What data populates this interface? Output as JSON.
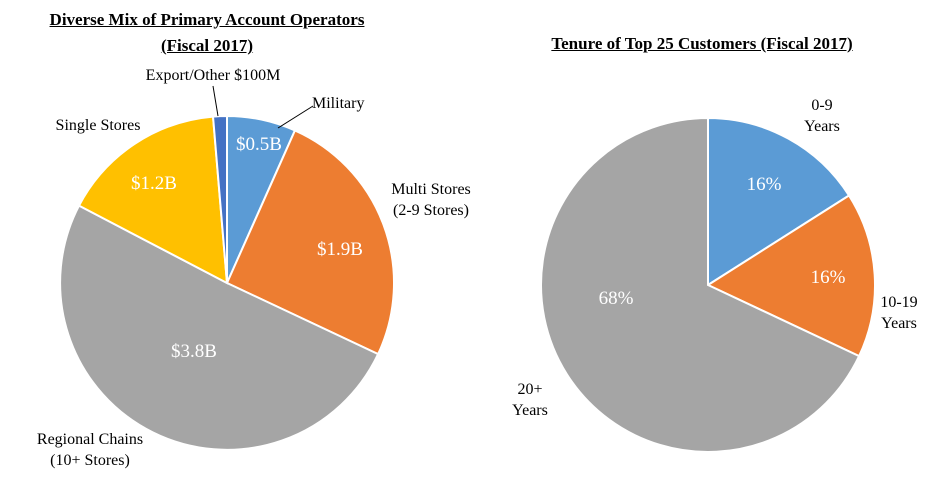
{
  "chart_data": [
    {
      "type": "pie",
      "title_line1": "Diverse Mix  of Primary  Account Operators",
      "title_line2": "(Fiscal 2017)",
      "slices": [
        {
          "label": "Military",
          "value": 0.5,
          "display": "$0.5B",
          "color": "#5b9bd5"
        },
        {
          "label_lines": [
            "Multi Stores",
            "(2-9 Stores)"
          ],
          "value": 1.9,
          "display": "$1.9B",
          "color": "#ed7d31"
        },
        {
          "label_lines": [
            "Regional Chains",
            "(10+ Stores)"
          ],
          "value": 3.8,
          "display": "$3.8B",
          "color": "#a5a5a5"
        },
        {
          "label": "Single  Stores",
          "value": 1.2,
          "display": "$1.2B",
          "color": "#ffc000"
        },
        {
          "label": "Export/Other $100M",
          "value": 0.1,
          "display": "",
          "color": "#4472c4"
        }
      ]
    },
    {
      "type": "pie",
      "title": "Tenure  of Top 25 Customers  (Fiscal 2017)",
      "slices": [
        {
          "label_lines": [
            "0-9",
            "Years"
          ],
          "value": 16,
          "display": "16%",
          "color": "#5b9bd5"
        },
        {
          "label_lines": [
            "10-19",
            "Years"
          ],
          "value": 16,
          "display": "16%",
          "color": "#ed7d31"
        },
        {
          "label_lines": [
            "20+",
            "Years"
          ],
          "value": 68,
          "display": "68%",
          "color": "#a5a5a5"
        }
      ]
    }
  ]
}
